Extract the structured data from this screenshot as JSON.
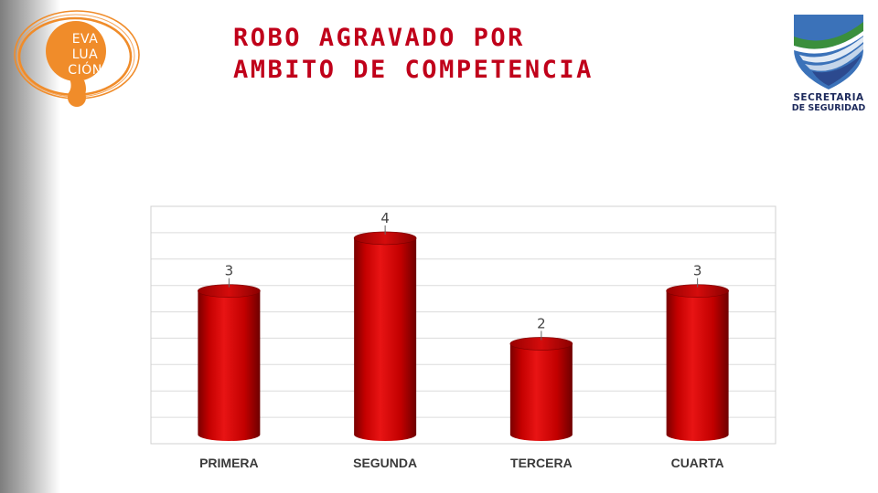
{
  "logo_left": {
    "lines": [
      "EVA",
      "LUA",
      "CIÓN"
    ],
    "color": "#f08c2a"
  },
  "title": {
    "lines": [
      "ROBO AGRAVADO POR",
      "AMBITO DE COMPETENCIA"
    ],
    "color": "#c0001a"
  },
  "logo_right": {
    "lines": [
      "SECRETARIA",
      "DE SEGURIDAD"
    ],
    "icon": "shield-icon"
  },
  "chart_data": {
    "type": "bar",
    "style": "3d-cylinder",
    "categories": [
      "PRIMERA",
      "SEGUNDA",
      "TERCERA",
      "CUARTA"
    ],
    "values": [
      3,
      4,
      2,
      3
    ],
    "data_labels": [
      "3",
      "4",
      "2",
      "3"
    ],
    "ylim": [
      0,
      4.5
    ],
    "grid": true,
    "legend": "none",
    "bar_color": "#c00000"
  }
}
